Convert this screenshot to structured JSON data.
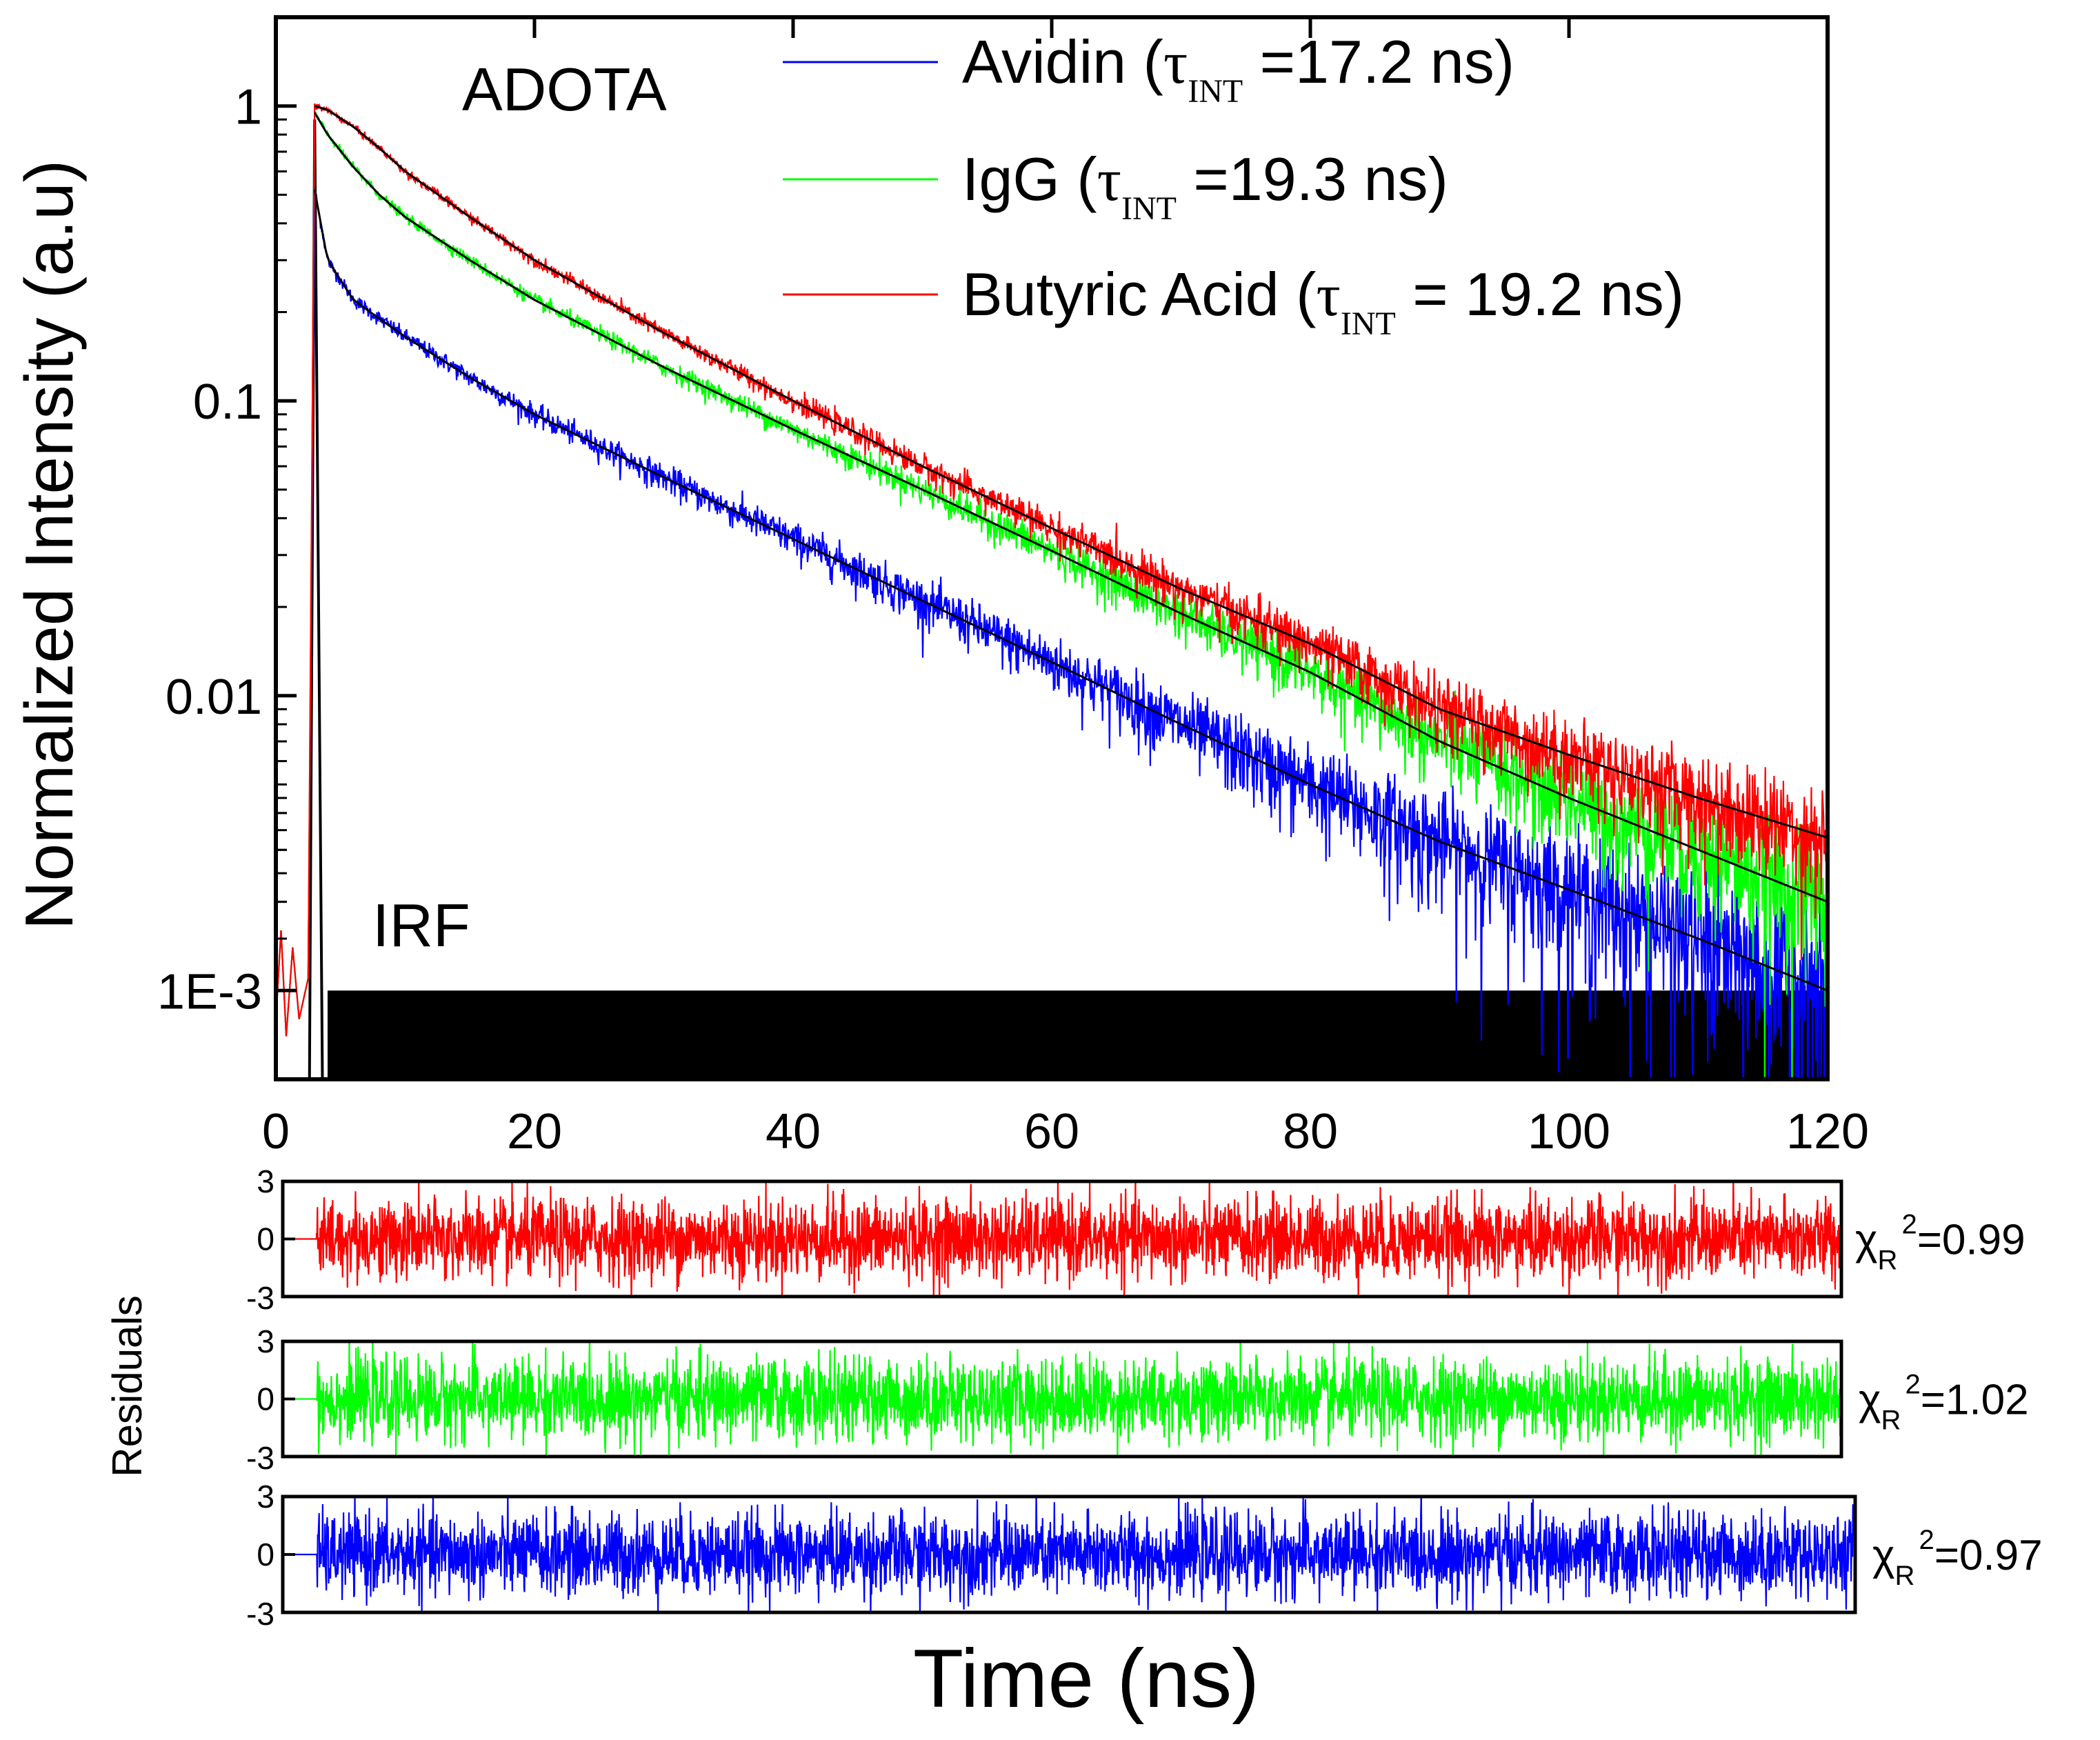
{
  "chart_data": [
    {
      "type": "line",
      "panel": "decay",
      "title": "",
      "annotations": [
        "ADOTA",
        "IRF"
      ],
      "xlabel": "",
      "ylabel": "Normalized Intensity (a.u)",
      "xlim": [
        0,
        120
      ],
      "ylim": [
        0.0005,
        2
      ],
      "yscale": "log",
      "xticks": [
        0,
        20,
        40,
        60,
        80,
        100,
        120
      ],
      "xtick_labels": [
        "0",
        "20",
        "40",
        "60",
        "80",
        "100",
        "120"
      ],
      "yticks": [
        0.001,
        0.01,
        0.1,
        1
      ],
      "ytick_labels": [
        "1E-3",
        "0.01",
        "0.1",
        "1"
      ],
      "legend_position": "top-right",
      "series": [
        {
          "key": "avidin",
          "name": "Avidin (τINT =17.2 ns)",
          "legend_main": "Avidin (",
          "legend_tau": "τ",
          "legend_sub": "INT",
          "legend_rest": " =17.2 ns)",
          "color": "#0000ff",
          "x": [
            3,
            4,
            6,
            8,
            10,
            15,
            20,
            30,
            40,
            50,
            60,
            70,
            80,
            90,
            100,
            110,
            120
          ],
          "y": [
            0.52,
            0.3,
            0.22,
            0.19,
            0.165,
            0.12,
            0.09,
            0.055,
            0.034,
            0.021,
            0.013,
            0.008,
            0.005,
            0.0032,
            0.0022,
            0.0015,
            0.001
          ]
        },
        {
          "key": "igg",
          "name": "IgG (τINT =19.3 ns)",
          "legend_main": "IgG (",
          "legend_tau": "τ",
          "legend_sub": "INT",
          "legend_rest": " =19.3 ns)",
          "color": "#00ff00",
          "x": [
            3,
            4,
            6,
            8,
            10,
            15,
            20,
            30,
            40,
            50,
            60,
            70,
            80,
            90,
            100,
            110,
            120
          ],
          "y": [
            0.95,
            0.8,
            0.62,
            0.5,
            0.42,
            0.3,
            0.22,
            0.13,
            0.08,
            0.05,
            0.031,
            0.019,
            0.012,
            0.007,
            0.0045,
            0.003,
            0.002
          ]
        },
        {
          "key": "butyric",
          "name": "Butyric Acid (τINT = 19.2 ns)",
          "legend_main": "Butyric Acid (",
          "legend_tau": "τ",
          "legend_sub": "INT",
          "legend_rest": " = 19.2 ns)",
          "color": "#ff0000",
          "x": [
            3,
            4,
            6,
            8,
            10,
            15,
            20,
            30,
            40,
            50,
            60,
            70,
            80,
            90,
            100,
            110,
            120
          ],
          "y": [
            1.0,
            0.97,
            0.85,
            0.72,
            0.6,
            0.42,
            0.3,
            0.17,
            0.1,
            0.06,
            0.037,
            0.023,
            0.015,
            0.009,
            0.0063,
            0.0045,
            0.0033
          ]
        }
      ]
    },
    {
      "type": "line",
      "panel": "residuals",
      "ylabel": "Residuals",
      "xlabel": "Time (ns)",
      "xlim": [
        0,
        120
      ],
      "ylim": [
        -3,
        3
      ],
      "yticks": [
        -3,
        0,
        3
      ],
      "ytick_labels": [
        "-3",
        "0",
        "3"
      ],
      "series": [
        {
          "key": "butyric",
          "color": "#ff0000",
          "chi_symbol": "χ",
          "chi_sub": "R",
          "chi_sup": "2",
          "chi_value": "=0.99"
        },
        {
          "key": "igg",
          "color": "#00ff00",
          "chi_symbol": "χ",
          "chi_sub": "R",
          "chi_sup": "2",
          "chi_value": "=1.02"
        },
        {
          "key": "avidin",
          "color": "#0000ff",
          "chi_symbol": "χ",
          "chi_sub": "R",
          "chi_sup": "2",
          "chi_value": "=0.97"
        }
      ]
    }
  ]
}
